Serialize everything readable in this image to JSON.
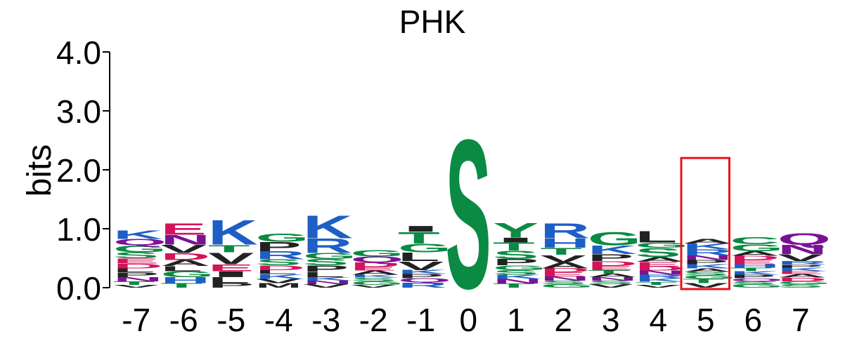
{
  "chart_data": {
    "type": "sequence-logo",
    "title": "PHK",
    "ylabel": "bits",
    "xlabel": "",
    "ylim": [
      0,
      4.0
    ],
    "yticks": [
      "0.0",
      "1.0",
      "2.0",
      "3.0",
      "4.0"
    ],
    "positions": [
      "-7",
      "-6",
      "-5",
      "-4",
      "-3",
      "-2",
      "-1",
      "0",
      "1",
      "2",
      "3",
      "4",
      "5",
      "6",
      "7"
    ],
    "highlighted_position": "5",
    "highlight_color": "#e8141c",
    "colors": {
      "green": "#0a8a43",
      "blue": "#1e5fc6",
      "red": "#d4145a",
      "purple": "#7a1296",
      "black": "#222222"
    },
    "residue_colors": {
      "G": "green",
      "S": "green",
      "T": "green",
      "Y": "green",
      "C": "green",
      "Q": "purple",
      "N": "purple",
      "K": "blue",
      "R": "blue",
      "H": "blue",
      "D": "red",
      "E": "red",
      "A": "black",
      "V": "black",
      "L": "black",
      "I": "black",
      "P": "black",
      "W": "black",
      "F": "black",
      "M": "black"
    },
    "stacks": [
      [
        [
          "V",
          0.05
        ],
        [
          "T",
          0.06
        ],
        [
          "N",
          0.07
        ],
        [
          "P",
          0.08
        ],
        [
          "L",
          0.07
        ],
        [
          "D",
          0.08
        ],
        [
          "E",
          0.09
        ],
        [
          "S",
          0.1
        ],
        [
          "G",
          0.12
        ],
        [
          "Q",
          0.11
        ],
        [
          "K",
          0.15
        ]
      ],
      [
        [
          "T",
          0.08
        ],
        [
          "H",
          0.1
        ],
        [
          "G",
          0.1
        ],
        [
          "L",
          0.09
        ],
        [
          "A",
          0.1
        ],
        [
          "D",
          0.12
        ],
        [
          "V",
          0.14
        ],
        [
          "N",
          0.17
        ],
        [
          "E",
          0.2
        ]
      ],
      [
        [
          "P",
          0.08
        ],
        [
          "L",
          0.1
        ],
        [
          "I",
          0.1
        ],
        [
          "E",
          0.12
        ],
        [
          "V",
          0.2
        ],
        [
          "T",
          0.13
        ],
        [
          "K",
          0.43
        ]
      ],
      [
        [
          "M",
          0.08
        ],
        [
          "V",
          0.07
        ],
        [
          "K",
          0.08
        ],
        [
          "L",
          0.07
        ],
        [
          "D",
          0.08
        ],
        [
          "S",
          0.1
        ],
        [
          "R",
          0.14
        ],
        [
          "P",
          0.16
        ],
        [
          "G",
          0.14
        ]
      ],
      [
        [
          "V",
          0.06
        ],
        [
          "N",
          0.06
        ],
        [
          "K",
          0.06
        ],
        [
          "L",
          0.09
        ],
        [
          "P",
          0.11
        ],
        [
          "S",
          0.11
        ],
        [
          "G",
          0.1
        ],
        [
          "R",
          0.25
        ],
        [
          "K",
          0.4
        ]
      ],
      [
        [
          "V",
          0.05
        ],
        [
          "G",
          0.06
        ],
        [
          "S",
          0.06
        ],
        [
          "K",
          0.05
        ],
        [
          "A",
          0.07
        ],
        [
          "E",
          0.06
        ],
        [
          "D",
          0.08
        ],
        [
          "Q",
          0.1
        ],
        [
          "G",
          0.11
        ]
      ],
      [
        [
          "R",
          0.09
        ],
        [
          "Q",
          0.07
        ],
        [
          "P",
          0.07
        ],
        [
          "K",
          0.07
        ],
        [
          "V",
          0.15
        ],
        [
          "L",
          0.15
        ],
        [
          "G",
          0.15
        ],
        [
          "T",
          0.2
        ],
        [
          "I",
          0.1
        ]
      ],
      [
        [
          "S",
          2.6
        ]
      ],
      [
        [
          "T",
          0.07
        ],
        [
          "N",
          0.08
        ],
        [
          "K",
          0.07
        ],
        [
          "S",
          0.08
        ],
        [
          "G",
          0.08
        ],
        [
          "P",
          0.11
        ],
        [
          "S",
          0.14
        ],
        [
          "T",
          0.14
        ],
        [
          "I",
          0.08
        ],
        [
          "Y",
          0.25
        ]
      ],
      [
        [
          "G",
          0.06
        ],
        [
          "S",
          0.06
        ],
        [
          "N",
          0.07
        ],
        [
          "E",
          0.07
        ],
        [
          "D",
          0.07
        ],
        [
          "A",
          0.1
        ],
        [
          "V",
          0.13
        ],
        [
          "T",
          0.12
        ],
        [
          "H",
          0.16
        ],
        [
          "R",
          0.26
        ]
      ],
      [
        [
          "V",
          0.06
        ],
        [
          "S",
          0.06
        ],
        [
          "N",
          0.06
        ],
        [
          "A",
          0.06
        ],
        [
          "T",
          0.06
        ],
        [
          "E",
          0.07
        ],
        [
          "D",
          0.08
        ],
        [
          "P",
          0.12
        ],
        [
          "K",
          0.15
        ],
        [
          "G",
          0.23
        ]
      ],
      [
        [
          "V",
          0.05
        ],
        [
          "T",
          0.05
        ],
        [
          "K",
          0.06
        ],
        [
          "R",
          0.06
        ],
        [
          "N",
          0.07
        ],
        [
          "D",
          0.07
        ],
        [
          "E",
          0.08
        ],
        [
          "A",
          0.08
        ],
        [
          "S",
          0.16
        ],
        [
          "G",
          0.09
        ],
        [
          "L",
          0.2
        ]
      ],
      [
        [
          "V",
          0.08
        ],
        [
          "T",
          0.07
        ],
        [
          "G",
          0.06
        ],
        [
          "S",
          0.06
        ],
        [
          "A",
          0.06
        ],
        [
          "K",
          0.07
        ],
        [
          "P",
          0.07
        ],
        [
          "N",
          0.08
        ],
        [
          "R",
          0.1
        ],
        [
          "K",
          0.1
        ],
        [
          "A",
          0.08
        ]
      ],
      [
        [
          "G",
          0.06
        ],
        [
          "S",
          0.05
        ],
        [
          "Q",
          0.05
        ],
        [
          "P",
          0.06
        ],
        [
          "K",
          0.06
        ],
        [
          "T",
          0.06
        ],
        [
          "H",
          0.06
        ],
        [
          "E",
          0.07
        ],
        [
          "D",
          0.07
        ],
        [
          "A",
          0.08
        ],
        [
          "G",
          0.12
        ],
        [
          "C",
          0.13
        ]
      ],
      [
        [
          "S",
          0.06
        ],
        [
          "G",
          0.05
        ],
        [
          "D",
          0.06
        ],
        [
          "A",
          0.06
        ],
        [
          "E",
          0.05
        ],
        [
          "K",
          0.06
        ],
        [
          "P",
          0.05
        ],
        [
          "R",
          0.06
        ],
        [
          "V",
          0.12
        ],
        [
          "N",
          0.16
        ],
        [
          "Q",
          0.2
        ]
      ]
    ]
  }
}
